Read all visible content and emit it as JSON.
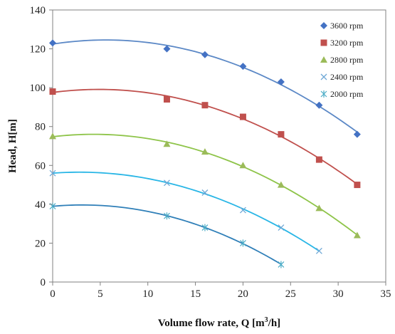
{
  "chart_data": {
    "type": "scatter",
    "title": "",
    "xlabel": "Volume flow rate, Q [m³/h]",
    "ylabel": "Head, H[m]",
    "xlim": [
      0,
      35
    ],
    "ylim": [
      0,
      140
    ],
    "xticks": [
      "0",
      "5",
      "10",
      "15",
      "20",
      "25",
      "30",
      "35"
    ],
    "yticks": [
      "0",
      "20",
      "40",
      "60",
      "80",
      "100",
      "120",
      "140"
    ],
    "grid": false,
    "legend_position": "top-right",
    "series": [
      {
        "name": "3600 rpm",
        "marker": "diamond",
        "color": "#4472C4",
        "line_color": "#5B88C6",
        "x": [
          0,
          12,
          16,
          20,
          24,
          28,
          32
        ],
        "y": [
          123,
          120,
          117,
          111,
          103,
          91,
          76
        ],
        "fit_x": [
          0,
          32
        ]
      },
      {
        "name": "3200 rpm",
        "marker": "square",
        "color": "#C0504D",
        "line_color": "#C0504D",
        "x": [
          0,
          12,
          16,
          20,
          24,
          28,
          32
        ],
        "y": [
          98,
          94,
          91,
          85,
          76,
          63,
          50
        ],
        "fit_x": [
          0,
          32
        ]
      },
      {
        "name": "2800 rpm",
        "marker": "triangle",
        "color": "#9BBB59",
        "line_color": "#8EC449",
        "x": [
          0,
          12,
          16,
          20,
          24,
          28,
          32
        ],
        "y": [
          75,
          71,
          67,
          60,
          50,
          38,
          24
        ],
        "fit_x": [
          0,
          32
        ]
      },
      {
        "name": "2400 rpm",
        "marker": "x",
        "color": "#6FA8D6",
        "line_color": "#29B6E6",
        "x": [
          0,
          12,
          16,
          20,
          24,
          28
        ],
        "y": [
          56,
          51,
          46,
          37,
          28,
          16
        ],
        "fit_x": [
          0,
          28
        ]
      },
      {
        "name": "2000 rpm",
        "marker": "star",
        "color": "#4BACC6",
        "line_color": "#2F7FB8",
        "x": [
          0,
          12,
          16,
          20,
          24
        ],
        "y": [
          39,
          34,
          28,
          20,
          9
        ],
        "fit_x": [
          0,
          24
        ]
      }
    ]
  }
}
